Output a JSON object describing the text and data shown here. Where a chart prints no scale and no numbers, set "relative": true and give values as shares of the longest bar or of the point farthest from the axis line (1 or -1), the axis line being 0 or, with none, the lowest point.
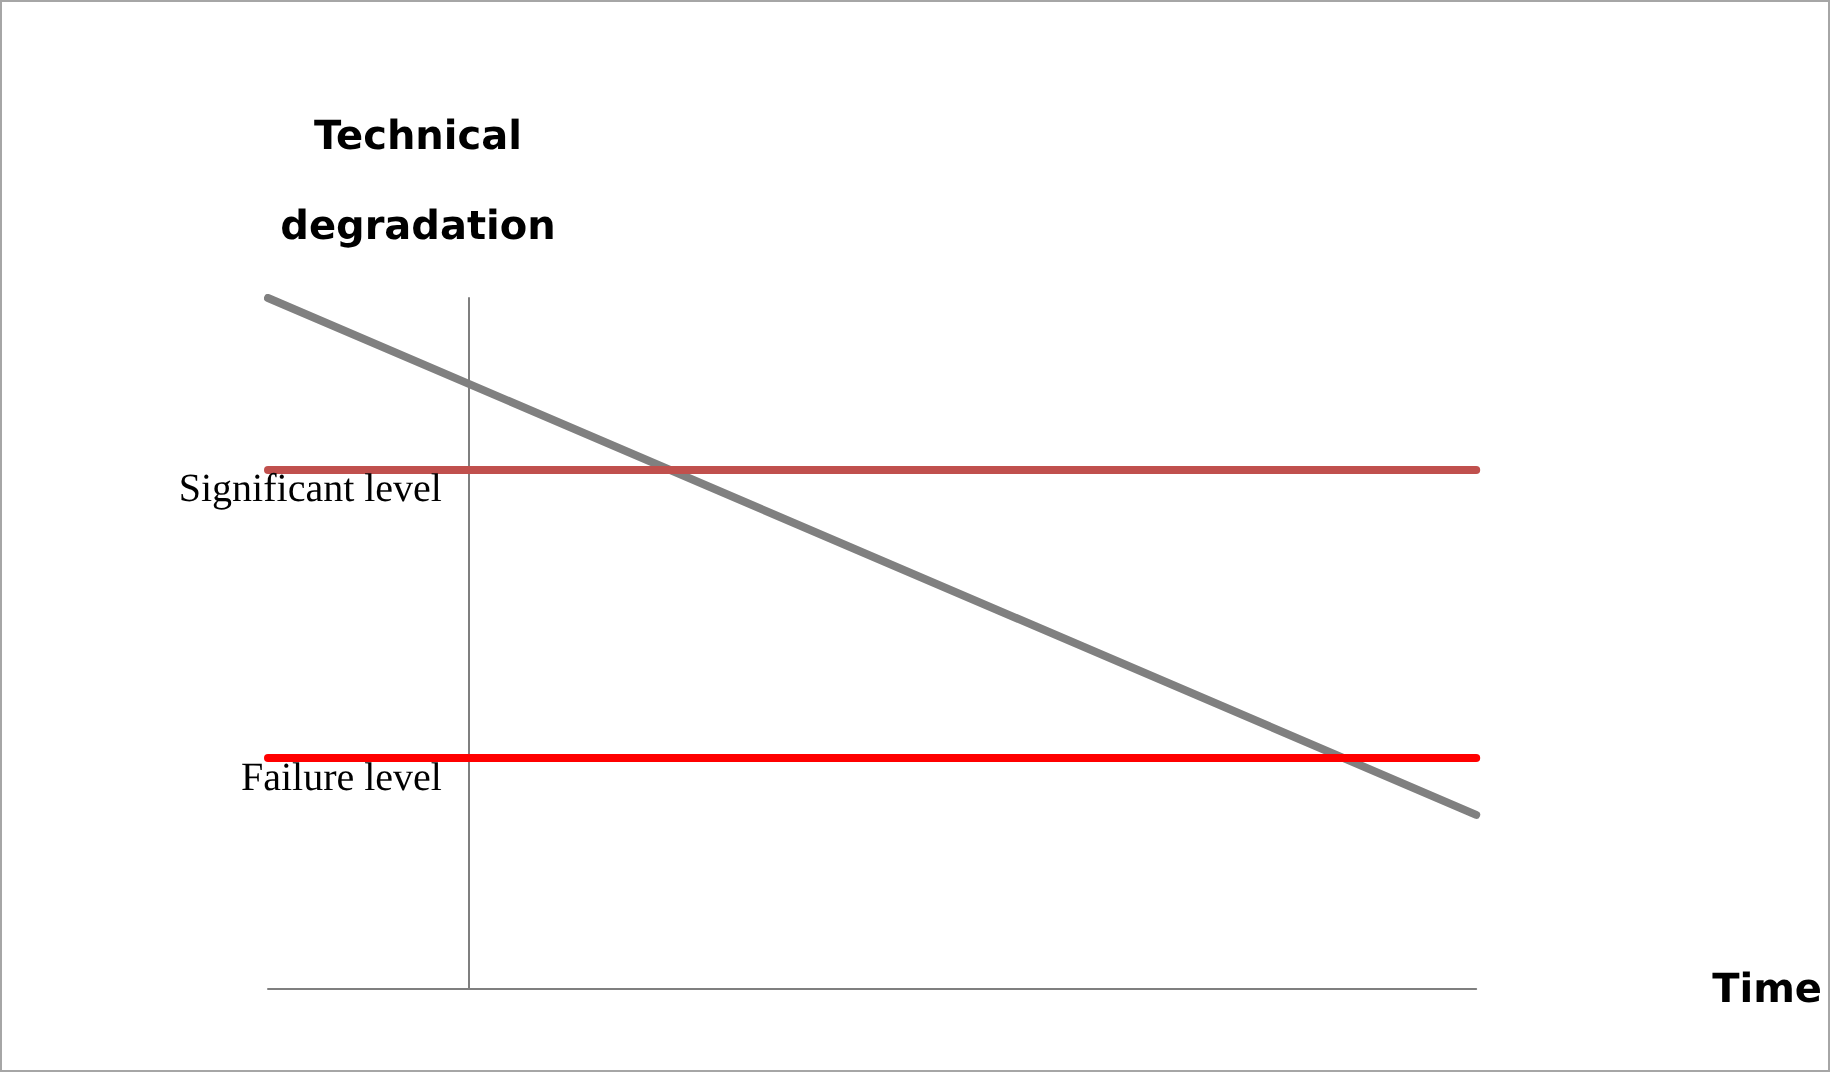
{
  "chart_data": {
    "type": "line",
    "xlabel": "Time",
    "ylabel": "Technical degradation",
    "categories": [
      null,
      null
    ],
    "relative": true,
    "series": [
      {
        "color": "#808080",
        "values": [
          1,
          0.251
        ]
      }
    ],
    "ref_lines": [
      {
        "axis": "y",
        "value": 0.752,
        "label": "Significant level",
        "color": "#c0504d"
      },
      {
        "axis": "y",
        "value": 0.334,
        "label": "Failure level",
        "color": "#ff0000"
      }
    ],
    "marker": "none",
    "line_style": "solid"
  }
}
